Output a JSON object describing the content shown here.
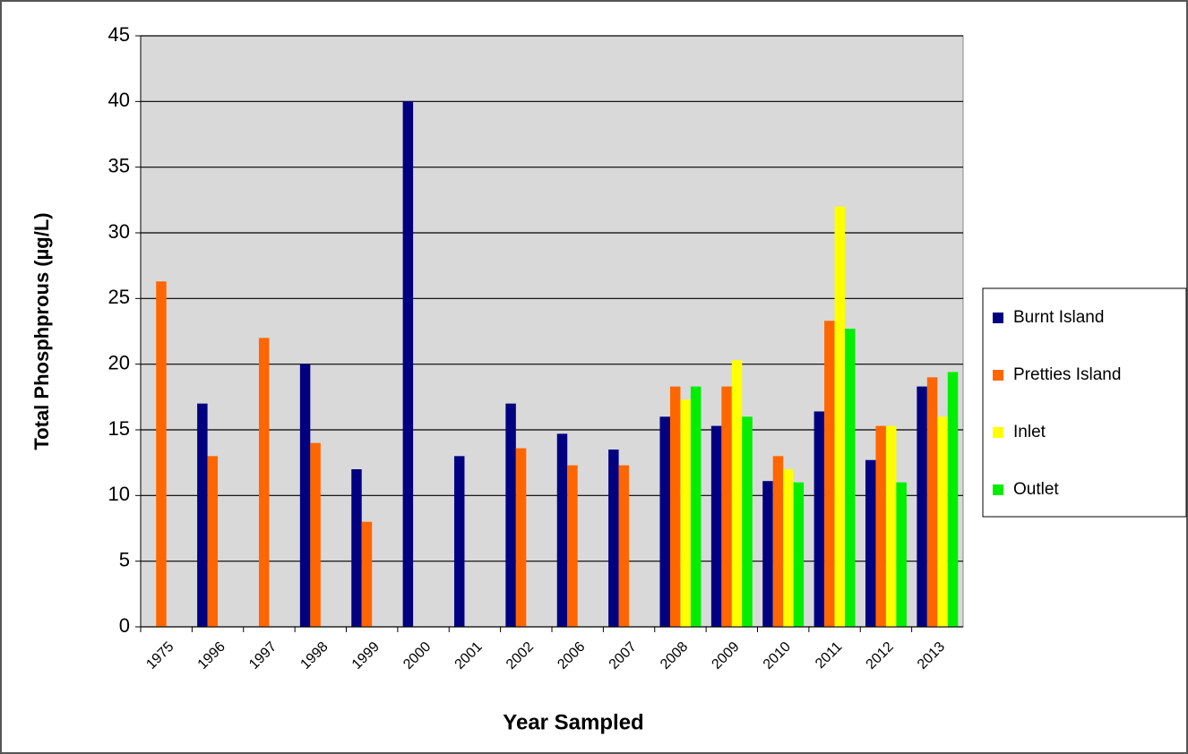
{
  "chart_data": {
    "type": "bar",
    "x_label": "Year Sampled",
    "y_label": "Total Phosphprous (µg/L)",
    "categories": [
      "1975",
      "1996",
      "1997",
      "1998",
      "1999",
      "2000",
      "2001",
      "2002",
      "2006",
      "2007",
      "2008",
      "2009",
      "2010",
      "2011",
      "2012",
      "2013"
    ],
    "series": [
      {
        "name": "Burnt Island",
        "color": "#000080",
        "values": [
          null,
          17,
          null,
          20,
          12,
          40,
          13,
          17,
          14.7,
          13.5,
          16,
          15.3,
          11.1,
          16.4,
          12.7,
          18.3
        ]
      },
      {
        "name": "Pretties Island",
        "color": "#ff6600",
        "values": [
          26.3,
          13,
          22,
          14,
          8,
          null,
          null,
          13.6,
          12.3,
          12.3,
          18.3,
          18.3,
          13,
          23.3,
          15.3,
          19
        ]
      },
      {
        "name": "Inlet",
        "color": "#ffff00",
        "values": [
          null,
          null,
          null,
          null,
          null,
          null,
          null,
          null,
          null,
          null,
          17.3,
          20.3,
          12,
          32,
          15.3,
          16
        ]
      },
      {
        "name": "Outlet",
        "color": "#00ee00",
        "values": [
          null,
          null,
          null,
          null,
          null,
          null,
          null,
          null,
          null,
          null,
          18.3,
          16,
          11,
          22.7,
          11,
          19.4
        ]
      }
    ],
    "ylim": [
      0,
      45
    ],
    "yticks": [
      0,
      5,
      10,
      15,
      20,
      25,
      30,
      35,
      40,
      45
    ],
    "grid": true,
    "legend": "right"
  }
}
